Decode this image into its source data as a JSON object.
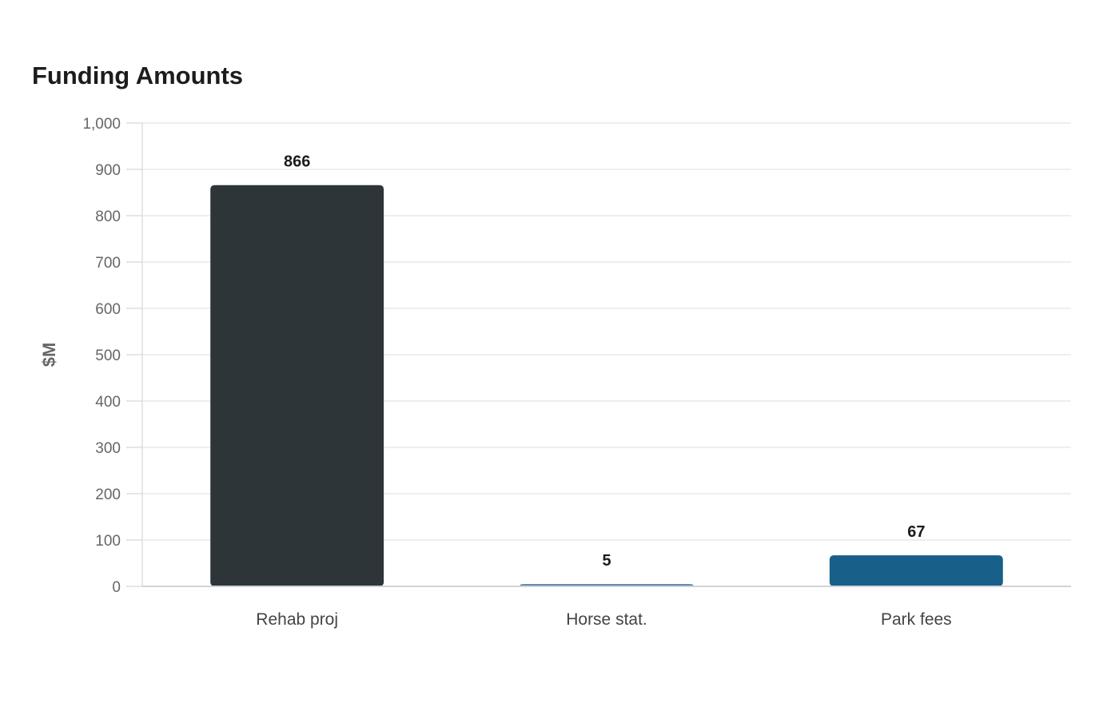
{
  "chart_data": {
    "type": "bar",
    "title": "Funding Amounts",
    "xlabel": "",
    "ylabel": "$M",
    "categories": [
      "Rehab proj",
      "Horse stat.",
      "Park fees"
    ],
    "values": [
      866,
      5,
      67
    ],
    "data_labels": [
      "866",
      "5",
      "67"
    ],
    "ylim": [
      0,
      1000
    ],
    "yticks": [
      0,
      100,
      200,
      300,
      400,
      500,
      600,
      700,
      800,
      900,
      1000
    ],
    "ytick_labels": [
      "0",
      "100",
      "200",
      "300",
      "400",
      "500",
      "600",
      "700",
      "800",
      "900",
      "1,000"
    ],
    "bar_colors": [
      "#2e3538",
      "#5b7fa8",
      "#18608a"
    ],
    "grid": true,
    "legend": "none"
  }
}
